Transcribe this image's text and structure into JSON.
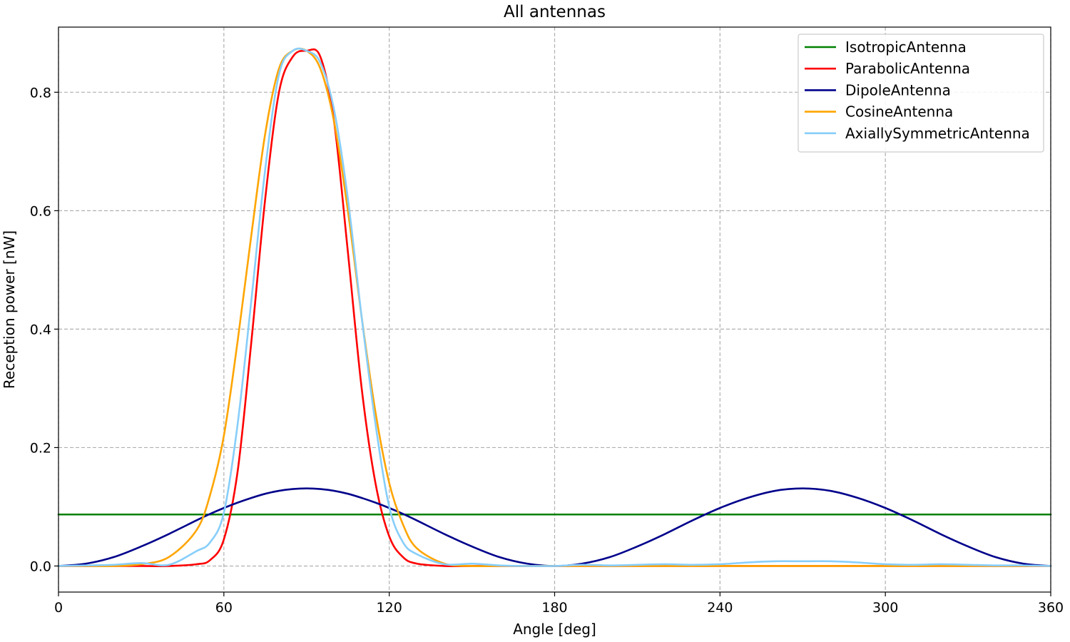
{
  "chart_data": {
    "type": "line",
    "title": "All antennas",
    "xlabel": "Angle [deg]",
    "ylabel": "Reception power [nW]",
    "xlim": [
      0,
      360
    ],
    "ylim": [
      -0.044,
      0.91
    ],
    "xticks": [
      0,
      60,
      120,
      180,
      240,
      300,
      360
    ],
    "xtick_labels": [
      "0",
      "60",
      "120",
      "180",
      "240",
      "300",
      "360"
    ],
    "yticks": [
      0.0,
      0.2,
      0.4,
      0.6,
      0.8
    ],
    "ytick_labels": [
      "0.0",
      "0.2",
      "0.4",
      "0.6",
      "0.8"
    ],
    "grid": true,
    "legend_position": "top-right",
    "x": [
      0,
      10,
      20,
      30,
      40,
      50,
      55,
      60,
      65,
      70,
      75,
      80,
      85,
      90,
      95,
      100,
      105,
      110,
      115,
      120,
      125,
      130,
      140,
      150,
      160,
      170,
      180,
      190,
      200,
      210,
      220,
      230,
      240,
      250,
      260,
      270,
      280,
      290,
      300,
      310,
      320,
      330,
      340,
      350,
      360
    ],
    "series": [
      {
        "name": "IsotropicAntenna",
        "color": "#008000",
        "values": [
          0.087,
          0.087,
          0.087,
          0.087,
          0.087,
          0.087,
          0.087,
          0.087,
          0.087,
          0.087,
          0.087,
          0.087,
          0.087,
          0.087,
          0.087,
          0.087,
          0.087,
          0.087,
          0.087,
          0.087,
          0.087,
          0.087,
          0.087,
          0.087,
          0.087,
          0.087,
          0.087,
          0.087,
          0.087,
          0.087,
          0.087,
          0.087,
          0.087,
          0.087,
          0.087,
          0.087,
          0.087,
          0.087,
          0.087,
          0.087,
          0.087,
          0.087,
          0.087,
          0.087,
          0.087
        ]
      },
      {
        "name": "ParabolicAntenna",
        "color": "#ff0000",
        "values": [
          0.0,
          0.0,
          0.0,
          0.0,
          0.0,
          0.003,
          0.01,
          0.045,
          0.16,
          0.38,
          0.62,
          0.8,
          0.86,
          0.87,
          0.86,
          0.75,
          0.53,
          0.3,
          0.14,
          0.05,
          0.015,
          0.004,
          0.0,
          0.0,
          0.0,
          0.0,
          0.0,
          0.0,
          0.0,
          0.0,
          0.0,
          0.0,
          0.0,
          0.0,
          0.0,
          0.0,
          0.0,
          0.0,
          0.0,
          0.0,
          0.0,
          0.0,
          0.0,
          0.0,
          0.0
        ]
      },
      {
        "name": "DipoleAntenna",
        "color": "#00008b",
        "values": [
          0.0,
          0.004,
          0.015,
          0.033,
          0.054,
          0.077,
          0.088,
          0.098,
          0.107,
          0.115,
          0.122,
          0.127,
          0.13,
          0.131,
          0.13,
          0.127,
          0.122,
          0.115,
          0.107,
          0.098,
          0.088,
          0.077,
          0.054,
          0.033,
          0.015,
          0.004,
          0.0,
          0.004,
          0.015,
          0.033,
          0.054,
          0.077,
          0.098,
          0.115,
          0.127,
          0.131,
          0.127,
          0.115,
          0.098,
          0.077,
          0.054,
          0.033,
          0.015,
          0.004,
          0.0
        ]
      },
      {
        "name": "CosineAntenna",
        "color": "#ffa500",
        "values": [
          0.0,
          0.0,
          0.0,
          0.003,
          0.015,
          0.06,
          0.12,
          0.22,
          0.38,
          0.56,
          0.73,
          0.84,
          0.87,
          0.87,
          0.84,
          0.75,
          0.6,
          0.42,
          0.26,
          0.14,
          0.07,
          0.03,
          0.004,
          0.0,
          0.0,
          0.0,
          0.0,
          0.0,
          0.0,
          0.0,
          0.0,
          0.0,
          0.0,
          0.0,
          0.0,
          0.0,
          0.0,
          0.0,
          0.0,
          0.0,
          0.0,
          0.0,
          0.0,
          0.0,
          0.0
        ]
      },
      {
        "name": "AxiallySymmetricAntenna",
        "color": "#87cefa",
        "values": [
          0.0,
          0.001,
          0.002,
          0.005,
          0.002,
          0.025,
          0.04,
          0.09,
          0.24,
          0.45,
          0.67,
          0.83,
          0.87,
          0.87,
          0.85,
          0.77,
          0.62,
          0.42,
          0.24,
          0.1,
          0.04,
          0.02,
          0.003,
          0.004,
          0.001,
          0.0,
          0.0,
          0.002,
          0.001,
          0.002,
          0.003,
          0.002,
          0.003,
          0.006,
          0.008,
          0.008,
          0.008,
          0.006,
          0.003,
          0.002,
          0.003,
          0.002,
          0.001,
          0.001,
          0.0
        ]
      }
    ]
  }
}
